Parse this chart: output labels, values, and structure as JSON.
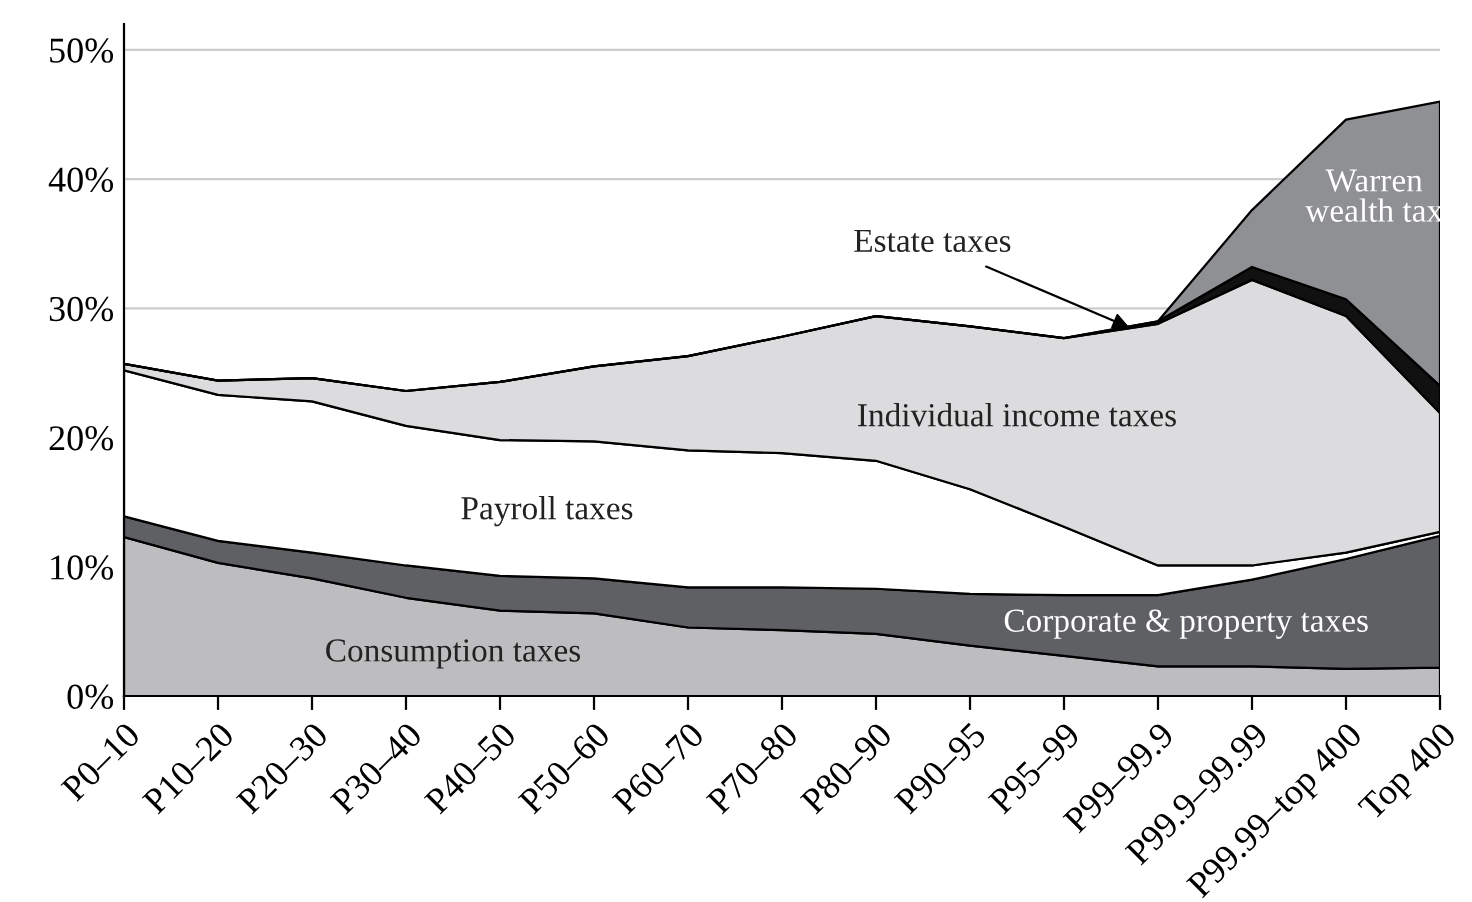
{
  "chart_data": {
    "type": "area",
    "stacked": true,
    "categories": [
      "P0–10",
      "P10–20",
      "P20–30",
      "P30–40",
      "P40–50",
      "P50–60",
      "P60–70",
      "P70–80",
      "P80–90",
      "P90–95",
      "P95–99",
      "P99–99.9",
      "P99.9–99.99",
      "P99.99–top 400",
      "Top 400"
    ],
    "series": [
      {
        "name": "Consumption taxes",
        "color": "#bdbdbf",
        "values": [
          12.3,
          10.3,
          9.1,
          7.6,
          6.6,
          6.4,
          5.3,
          5.1,
          4.8,
          3.9,
          3.1,
          2.3,
          2.3,
          2.1,
          2.2
        ]
      },
      {
        "name": "Corporate & property taxes",
        "color": "#5f6063",
        "values": [
          1.6,
          1.7,
          2.0,
          2.5,
          2.7,
          2.7,
          3.1,
          3.3,
          3.5,
          4.0,
          4.7,
          5.5,
          6.7,
          8.5,
          10.2
        ]
      },
      {
        "name": "Payroll taxes",
        "color": "#ffffff",
        "values": [
          11.3,
          11.3,
          11.7,
          10.8,
          10.5,
          10.6,
          10.6,
          10.4,
          9.9,
          8.1,
          5.3,
          2.3,
          1.1,
          0.5,
          0.3
        ]
      },
      {
        "name": "Individual income taxes",
        "color": "#dcdcde",
        "values": [
          0.5,
          1.1,
          1.8,
          2.7,
          4.5,
          5.8,
          7.3,
          9.0,
          11.2,
          12.6,
          14.6,
          18.7,
          22.1,
          18.3,
          9.2
        ]
      },
      {
        "name": "Estate taxes",
        "color": "#111111",
        "values": [
          0,
          0,
          0,
          0,
          0,
          0,
          0,
          0,
          0,
          0,
          0,
          0.2,
          1.0,
          1.3,
          2.1
        ]
      },
      {
        "name": "Warren wealth tax",
        "color": "#8f9093",
        "values": [
          0,
          0,
          0,
          0,
          0,
          0,
          0,
          0,
          0,
          0,
          0,
          0,
          4.4,
          13.9,
          22.0
        ]
      }
    ],
    "ylim": [
      0,
      52
    ],
    "yticks": [
      {
        "value": 0,
        "label": "0%"
      },
      {
        "value": 10,
        "label": "10%"
      },
      {
        "value": 20,
        "label": "20%"
      },
      {
        "value": 30,
        "label": "30%"
      },
      {
        "value": 40,
        "label": "40%"
      },
      {
        "value": 50,
        "label": "50%"
      }
    ],
    "grid": "y",
    "legend": false
  }
}
